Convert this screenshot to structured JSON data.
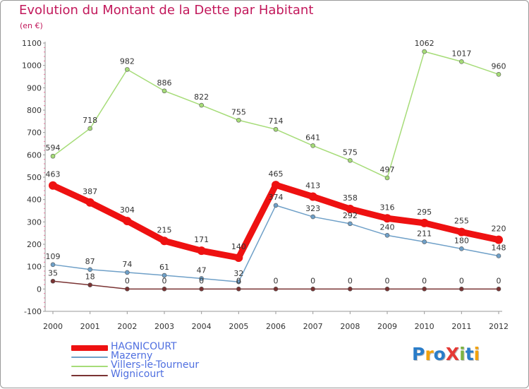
{
  "header": {
    "title": "Evolution du Montant de la Dette par Habitant",
    "subtitle": "(en €)"
  },
  "logo": {
    "text": "ProXiti",
    "letters": [
      {
        "ch": "P",
        "color": "#2a7dc9"
      },
      {
        "ch": "r",
        "color": "#f2a20d"
      },
      {
        "ch": "o",
        "color": "#2a7dc9"
      },
      {
        "ch": "X",
        "color": "#e53935"
      },
      {
        "ch": "i",
        "color": "#7cb342"
      },
      {
        "ch": "t",
        "color": "#2a7dc9"
      },
      {
        "ch": "i",
        "color": "#f2a20d"
      }
    ]
  },
  "chart_data": {
    "type": "line",
    "title": "Evolution du Montant de la Dette par Habitant",
    "ylabel": "(en €)",
    "xlabel": "",
    "ylim": [
      -100,
      1100
    ],
    "yticks": [
      -100,
      0,
      100,
      200,
      300,
      400,
      500,
      600,
      700,
      800,
      900,
      1000,
      1100
    ],
    "grid": false,
    "legend_position": "bottom-left",
    "x": [
      "2000",
      "2001",
      "2002",
      "2003",
      "2004",
      "2005",
      "2006",
      "2007",
      "2008",
      "2009",
      "2010",
      "2011",
      "2012"
    ],
    "series": [
      {
        "name": "HAGNICOURT",
        "color": "#ee1111",
        "width": "thick",
        "label_color": "#333333",
        "values": [
          463,
          387,
          304,
          215,
          171,
          140,
          465,
          413,
          358,
          316,
          295,
          255,
          220
        ]
      },
      {
        "name": "Mazerny",
        "color": "#6fa0c8",
        "width": "thin",
        "label_color": "#333333",
        "values": [
          109,
          87,
          74,
          61,
          47,
          32,
          374,
          323,
          292,
          240,
          211,
          180,
          148
        ]
      },
      {
        "name": "Villers-le-Tourneur",
        "color": "#a6dc78",
        "width": "thin",
        "label_color": "#333333",
        "values": [
          594,
          718,
          982,
          886,
          822,
          755,
          714,
          641,
          575,
          497,
          1062,
          1017,
          960
        ]
      },
      {
        "name": "Wignicourt",
        "color": "#7a3333",
        "width": "thin",
        "label_color": "#333333",
        "values": [
          35,
          18,
          0,
          0,
          0,
          0,
          0,
          0,
          0,
          0,
          0,
          0,
          0
        ]
      }
    ]
  }
}
